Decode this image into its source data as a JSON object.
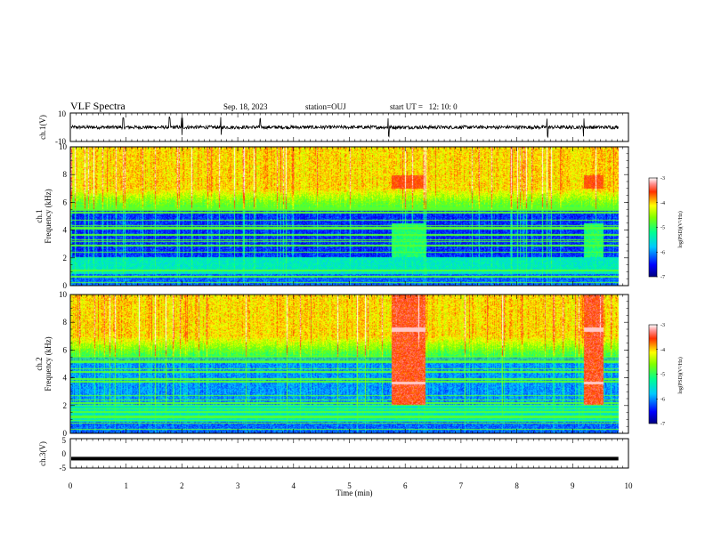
{
  "header": {
    "title": "VLF Spectra",
    "date": "Sep. 18, 2023",
    "station": "station=OUJ",
    "start": "start UT =   12: 10: 0"
  },
  "chart_data": [
    {
      "type": "line",
      "panel": "waveform-ch1",
      "ylabel": "ch.1(V)",
      "ylim": [
        -10,
        10
      ],
      "yticks": [
        "10",
        "-10"
      ],
      "x_unit": "min",
      "xlim": [
        0,
        10
      ],
      "data_extent_x": [
        0,
        9.82
      ],
      "baseline": 0,
      "noise_amplitude": 1.2,
      "spikes": [
        0.95,
        1.78,
        2.0,
        2.7,
        3.4,
        5.7,
        8.55,
        9.2
      ]
    },
    {
      "type": "heatmap",
      "panel": "spectrogram-ch1",
      "ylabel": "ch.1\nFrequency (kHz)",
      "ylabel_lines": [
        "ch.1",
        "Frequency (kHz)"
      ],
      "ylim": [
        0,
        10
      ],
      "yticks": [
        "0",
        "2",
        "4",
        "6",
        "8",
        "10"
      ],
      "xlim": [
        0,
        10
      ],
      "data_extent_x": [
        0,
        9.82
      ],
      "bursts": [
        [
          5.75,
          6.35
        ],
        [
          9.2,
          9.55
        ]
      ],
      "colorbar": {
        "label": "log(PSD)(V²/Hz)",
        "range": [
          -7,
          -3
        ],
        "ticks": [
          "-3",
          "-4",
          "-5",
          "-6",
          "-7"
        ]
      }
    },
    {
      "type": "heatmap",
      "panel": "spectrogram-ch2",
      "ylabel": "ch.2\nFrequency (kHz)",
      "ylabel_lines": [
        "ch.2",
        "Frequency (kHz)"
      ],
      "ylim": [
        0,
        10
      ],
      "yticks": [
        "0",
        "2",
        "4",
        "6",
        "8",
        "10"
      ],
      "xlim": [
        0,
        10
      ],
      "data_extent_x": [
        0,
        9.82
      ],
      "bursts": [
        [
          5.75,
          6.35
        ],
        [
          9.2,
          9.55
        ]
      ],
      "colorbar": {
        "label": "log(PSD)(V²/Hz)",
        "range": [
          -7,
          -3
        ],
        "ticks": [
          "-3",
          "-4",
          "-5",
          "-6",
          "-7"
        ]
      }
    },
    {
      "type": "line",
      "panel": "waveform-ch3",
      "ylabel": "ch.3(V)",
      "ylim": [
        -5,
        5
      ],
      "yticks": [
        "5",
        "0",
        "-5"
      ],
      "xlim": [
        0,
        10
      ],
      "data_extent_x": [
        0,
        9.82
      ],
      "constant_value": -1.8
    }
  ],
  "xaxis": {
    "label": "Time (min)",
    "ticks": [
      "0",
      "1",
      "2",
      "3",
      "4",
      "5",
      "6",
      "7",
      "8",
      "9",
      "10"
    ]
  }
}
